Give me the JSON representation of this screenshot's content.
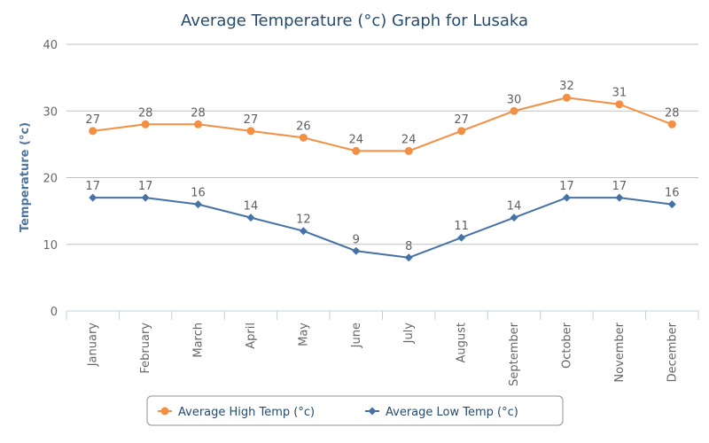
{
  "chart_data": {
    "type": "line",
    "title": "Average Temperature (°c) Graph for Lusaka",
    "xlabel": "",
    "ylabel": "Temperature (°c)",
    "ylim": [
      0,
      40
    ],
    "yticks": [
      0,
      10,
      20,
      30,
      40
    ],
    "grid": true,
    "legend_position": "bottom",
    "categories": [
      "January",
      "February",
      "March",
      "April",
      "May",
      "June",
      "July",
      "August",
      "September",
      "October",
      "November",
      "December"
    ],
    "series": [
      {
        "name": "Average High Temp (°c)",
        "color": "#f28f43",
        "marker": "circle",
        "values": [
          27,
          28,
          28,
          27,
          26,
          24,
          24,
          27,
          30,
          32,
          31,
          28
        ]
      },
      {
        "name": "Average Low Temp (°c)",
        "color": "#4572a7",
        "marker": "diamond",
        "values": [
          17,
          17,
          16,
          14,
          12,
          9,
          8,
          11,
          14,
          17,
          17,
          16
        ]
      }
    ]
  }
}
